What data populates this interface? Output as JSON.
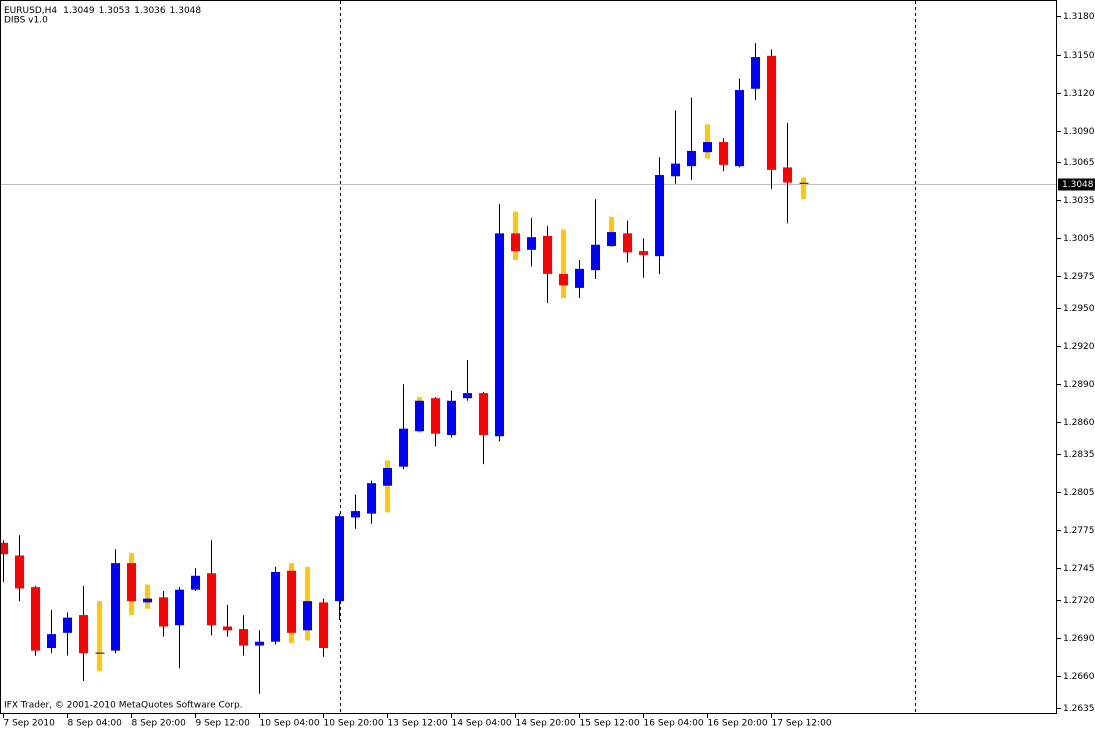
{
  "chart_data": {
    "type": "candlestick",
    "title": "EURUSD,H4",
    "indicator": "DIBS v1.0",
    "copyright": "IFX Trader, © 2001-2010 MetaQuotes Software Corp.",
    "categories": [
      "7 Sep 2010",
      null,
      null,
      null,
      "8 Sep 04:00",
      null,
      null,
      null,
      "8 Sep 20:00",
      null,
      null,
      null,
      "9 Sep 12:00",
      null,
      null,
      null,
      "10 Sep 04:00",
      null,
      null,
      null,
      "10 Sep 20:00",
      null,
      null,
      null,
      "13 Sep 12:00",
      null,
      null,
      null,
      "14 Sep 04:00",
      null,
      null,
      null,
      "14 Sep 20:00",
      null,
      null,
      null,
      "15 Sep 12:00",
      null,
      null,
      null,
      "16 Sep 04:00",
      null,
      null,
      null,
      "16 Sep 20:00",
      null,
      null,
      null,
      "17 Sep 12:00",
      null,
      null
    ],
    "open": [
      1.2765,
      1.2755,
      1.273,
      1.2682,
      1.2694,
      1.2708,
      1.2678,
      1.268,
      1.2749,
      1.2718,
      1.2722,
      1.27,
      1.2728,
      1.2741,
      1.2699,
      1.2697,
      1.2684,
      1.2687,
      1.2743,
      1.2696,
      1.2718,
      1.2719,
      1.2785,
      1.2788,
      1.281,
      1.2825,
      1.2853,
      1.2879,
      1.285,
      1.2879,
      1.2883,
      1.2849,
      1.3009,
      1.2996,
      1.3007,
      1.2977,
      1.2966,
      1.298,
      1.2999,
      1.3009,
      1.2995,
      1.2991,
      1.3054,
      1.3062,
      1.3073,
      1.3081,
      1.3062,
      1.3123,
      1.3149,
      1.3061,
      1.3049
    ],
    "high": [
      1.2767,
      1.2771,
      1.2731,
      1.2712,
      1.271,
      1.2731,
      1.2719,
      1.276,
      1.2757,
      1.2732,
      1.2727,
      1.273,
      1.2745,
      1.2767,
      1.2716,
      1.2708,
      1.2696,
      1.2746,
      1.2749,
      1.2746,
      1.2721,
      1.2788,
      1.2803,
      1.2814,
      1.283,
      1.289,
      1.288,
      1.288,
      1.2885,
      1.2909,
      1.2884,
      1.3032,
      1.3026,
      1.3021,
      1.3015,
      1.3012,
      1.2988,
      1.3036,
      1.3022,
      1.3019,
      1.3005,
      1.3069,
      1.3106,
      1.3116,
      1.3095,
      1.3084,
      1.3131,
      1.3159,
      1.3154,
      1.3096,
      1.3053
    ],
    "low": [
      1.2734,
      1.2719,
      1.2676,
      1.2678,
      1.2676,
      1.2656,
      1.2664,
      1.2678,
      1.2708,
      1.2713,
      1.2691,
      1.2666,
      1.2727,
      1.2692,
      1.2691,
      1.2676,
      1.2646,
      1.2685,
      1.2686,
      1.2688,
      1.2675,
      1.2704,
      1.2776,
      1.278,
      1.2789,
      1.2823,
      1.2852,
      1.2841,
      1.2848,
      1.2877,
      1.2827,
      1.2845,
      1.2988,
      1.2983,
      1.2954,
      1.2958,
      1.2958,
      1.2973,
      1.2998,
      1.2986,
      1.2974,
      1.2977,
      1.3048,
      1.3051,
      1.3068,
      1.3058,
      1.3061,
      1.3114,
      1.3044,
      1.3017,
      1.3036
    ],
    "close": [
      1.2756,
      1.2729,
      1.268,
      1.2693,
      1.2706,
      1.2678,
      1.2678,
      1.2749,
      1.2719,
      1.2721,
      1.2699,
      1.2728,
      1.2739,
      1.27,
      1.2696,
      1.2684,
      1.2687,
      1.2742,
      1.2694,
      1.2719,
      1.2682,
      1.2786,
      1.279,
      1.2812,
      1.2824,
      1.2855,
      1.2877,
      1.2851,
      1.2877,
      1.2883,
      1.285,
      1.3009,
      1.2995,
      1.3006,
      1.2977,
      1.2968,
      1.2981,
      1.3,
      1.301,
      1.2994,
      1.2992,
      1.3055,
      1.3064,
      1.3074,
      1.3081,
      1.3063,
      1.3122,
      1.3148,
      1.3059,
      1.3049,
      1.3048
    ],
    "inside_bar": [
      false,
      false,
      false,
      false,
      false,
      false,
      true,
      false,
      true,
      true,
      false,
      false,
      false,
      false,
      false,
      false,
      false,
      false,
      true,
      true,
      false,
      false,
      false,
      false,
      true,
      false,
      true,
      false,
      false,
      false,
      false,
      false,
      true,
      false,
      false,
      true,
      false,
      false,
      true,
      false,
      false,
      false,
      false,
      false,
      true,
      false,
      false,
      false,
      false,
      false,
      true
    ],
    "up_color": "#0000ff",
    "down_color": "#ff0000",
    "inside_color": "#ffc800",
    "ylim": [
      1.263,
      1.3193
    ],
    "yticks": [
      {
        "value": 1.318,
        "label": "1.3180"
      },
      {
        "value": 1.315,
        "label": "1.3150"
      },
      {
        "value": 1.312,
        "label": "1.3120"
      },
      {
        "value": 1.309,
        "label": "1.3090"
      },
      1.3065,
      1.3035,
      1.3005,
      1.2975,
      {
        "value": 1.295,
        "label": "1.2950"
      },
      {
        "value": 1.292,
        "label": "1.2920"
      },
      {
        "value": 1.289,
        "label": "1.2890"
      },
      {
        "value": 1.286,
        "label": "1.2860"
      },
      1.2835,
      1.2805,
      1.2775,
      1.2745,
      {
        "value": 1.272,
        "label": "1.2720"
      },
      {
        "value": 1.269,
        "label": "1.2690"
      },
      {
        "value": 1.266,
        "label": "1.2660"
      },
      1.2635
    ]
  }
}
